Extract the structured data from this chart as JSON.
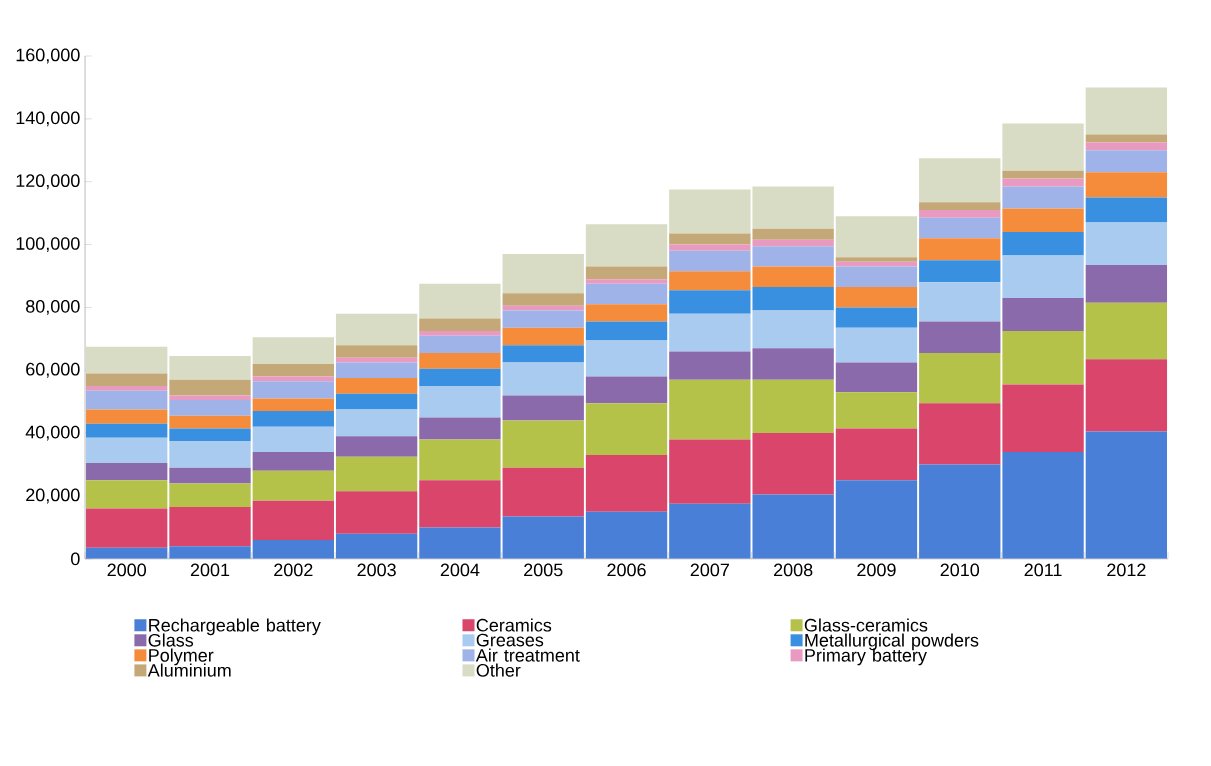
{
  "chart_data": {
    "type": "bar",
    "stacked": true,
    "categories": [
      "2000",
      "2001",
      "2002",
      "2003",
      "2004",
      "2005",
      "2006",
      "2007",
      "2008",
      "2009",
      "2010",
      "2011",
      "2012"
    ],
    "series": [
      {
        "name": "Rechargeable battery",
        "color": "#4a7fd8",
        "values": [
          3500,
          4000,
          6000,
          8000,
          10000,
          13500,
          15000,
          17500,
          20500,
          25000,
          30000,
          34000,
          40500
        ]
      },
      {
        "name": "Ceramics",
        "color": "#d9456b",
        "values": [
          12500,
          12500,
          12500,
          13500,
          15000,
          15500,
          18000,
          20500,
          19500,
          16500,
          19500,
          21500,
          23000
        ]
      },
      {
        "name": "Glass-ceramics",
        "color": "#b5c24a",
        "values": [
          9000,
          7500,
          9500,
          11000,
          13000,
          15000,
          16500,
          19000,
          17000,
          11500,
          16000,
          17000,
          18000
        ]
      },
      {
        "name": "Glass",
        "color": "#8a6aab",
        "values": [
          5500,
          5000,
          6000,
          6500,
          7000,
          8000,
          8500,
          9000,
          10000,
          9500,
          10000,
          10500,
          12000
        ]
      },
      {
        "name": "Greases",
        "color": "#a9cbf0",
        "values": [
          8000,
          8500,
          8000,
          8500,
          10000,
          10500,
          11500,
          12000,
          12000,
          11000,
          12500,
          13500,
          13500
        ]
      },
      {
        "name": "Metallurgical powders",
        "color": "#3a90e0",
        "values": [
          4500,
          4000,
          5000,
          5000,
          5500,
          5500,
          6000,
          7500,
          7500,
          6500,
          7000,
          7500,
          8000
        ]
      },
      {
        "name": "Polymer",
        "color": "#f58c3c",
        "values": [
          4500,
          4000,
          4000,
          5000,
          5000,
          5500,
          5500,
          6000,
          6500,
          6500,
          7000,
          7500,
          8000
        ]
      },
      {
        "name": "Air treatment",
        "color": "#9fb3e8",
        "values": [
          6000,
          5000,
          5500,
          5000,
          5500,
          5500,
          6500,
          6500,
          6500,
          6500,
          6500,
          7000,
          7000
        ]
      },
      {
        "name": "Primary battery",
        "color": "#e89ac0",
        "values": [
          1500,
          1500,
          1500,
          1500,
          1500,
          1500,
          1500,
          2000,
          2000,
          1500,
          2500,
          2500,
          2500
        ]
      },
      {
        "name": "Aluminium",
        "color": "#c4a878",
        "values": [
          4000,
          5000,
          4000,
          4000,
          4000,
          4000,
          4000,
          3500,
          3500,
          1500,
          2500,
          2500,
          2500
        ]
      },
      {
        "name": "Other",
        "color": "#d8dcc4",
        "values": [
          8500,
          7500,
          8500,
          10000,
          11000,
          12500,
          13500,
          14000,
          13500,
          13000,
          14000,
          15000,
          15000
        ]
      }
    ],
    "ylim": [
      0,
      160000
    ],
    "yticks": [
      0,
      {
        "value": 20000,
        "label": "20,000"
      },
      {
        "value": 40000,
        "label": "40,000"
      },
      {
        "value": 60000,
        "label": "60,000"
      },
      {
        "value": 80000,
        "label": "80,000"
      },
      {
        "value": 100000,
        "label": "100,000"
      },
      {
        "value": 120000,
        "label": "120,000"
      },
      {
        "value": 140000,
        "label": "140,000"
      },
      {
        "value": 160000,
        "label": "160,000"
      }
    ],
    "legend": "bottom",
    "grid": false
  }
}
